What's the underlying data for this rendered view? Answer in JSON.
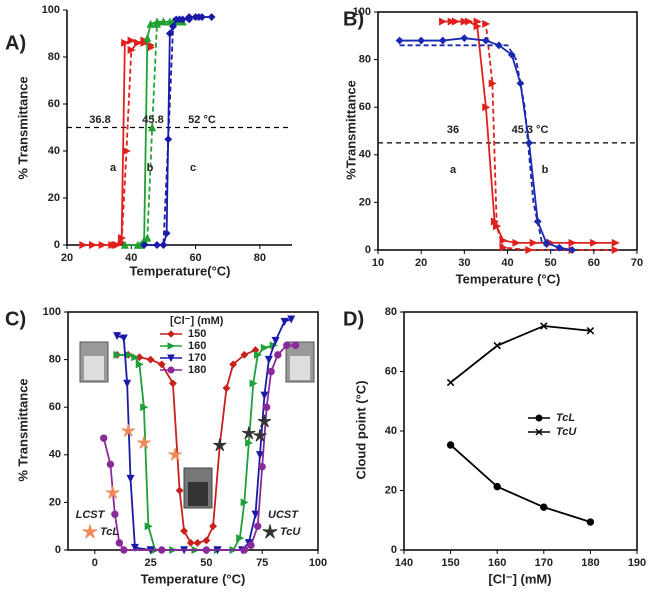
{
  "chart_data": [
    {
      "type": "line",
      "panel_label": "A)",
      "xlabel": "Temperature(°C)",
      "ylabel": "% Transmittance",
      "frame": false,
      "xlim": [
        20,
        90
      ],
      "xticks": [
        20,
        40,
        60,
        80
      ],
      "ylim": [
        0,
        100
      ],
      "yticks": [
        0,
        20,
        40,
        60,
        80,
        100
      ],
      "ref_line": 50,
      "annotations": [
        {
          "text": "36.8",
          "color": "#e0201c"
        },
        {
          "text": "45.8",
          "color": "#22a032"
        },
        {
          "text": "52 °C",
          "color": "#1a1aa8"
        },
        {
          "text": "a",
          "color": "#000"
        },
        {
          "text": "b",
          "color": "#000"
        },
        {
          "text": "c",
          "color": "#000"
        }
      ],
      "series": [
        {
          "color": "#e0201c",
          "marker": "triangle-right",
          "dash": false,
          "x": [
            25,
            28,
            31,
            34,
            35.5,
            37,
            38,
            40,
            42,
            44,
            46
          ],
          "values": [
            0,
            0,
            0,
            0,
            0,
            3,
            86,
            87,
            86,
            87,
            85
          ]
        },
        {
          "color": "#e0201c",
          "marker": "triangle-right",
          "dash": true,
          "x": [
            35,
            37,
            38.5,
            40,
            42,
            44,
            46
          ],
          "values": [
            0,
            1,
            40,
            83,
            86,
            86,
            84
          ]
        },
        {
          "color": "#22a032",
          "marker": "triangle",
          "dash": false,
          "x": [
            38,
            42,
            44,
            45,
            46,
            48,
            50,
            52,
            54,
            56
          ],
          "values": [
            0,
            0,
            2,
            88,
            94,
            95,
            95,
            95,
            95,
            95
          ]
        },
        {
          "color": "#22a032",
          "marker": "triangle",
          "dash": true,
          "x": [
            43,
            45,
            46.5,
            48,
            50,
            53,
            56
          ],
          "values": [
            0,
            3,
            50,
            94,
            95,
            95,
            95
          ]
        },
        {
          "color": "#1a1aa8",
          "marker": "diamond",
          "dash": false,
          "x": [
            44,
            48,
            50,
            51,
            52,
            54,
            56,
            58,
            60,
            62,
            65
          ],
          "values": [
            0,
            0,
            0,
            5,
            90,
            96,
            96,
            97,
            97,
            97,
            97
          ]
        },
        {
          "color": "#1a1aa8",
          "marker": "diamond",
          "dash": true,
          "x": [
            48,
            50,
            51.5,
            53,
            55,
            58,
            61
          ],
          "values": [
            0,
            0,
            45,
            93,
            96,
            96,
            97
          ]
        }
      ]
    },
    {
      "type": "line",
      "panel_label": "B)",
      "xlabel": "Temperature (°C)",
      "ylabel": "%Transmittance",
      "frame": true,
      "xlim": [
        10,
        70
      ],
      "xticks": [
        10,
        20,
        30,
        40,
        50,
        60,
        70
      ],
      "ylim": [
        0,
        100
      ],
      "yticks": [
        0,
        20,
        40,
        60,
        80,
        100
      ],
      "ref_line": 45,
      "annotations": [
        {
          "text": "36",
          "color": "#e0201c"
        },
        {
          "text": "45.3 °C",
          "color": "#1a1aa8"
        },
        {
          "text": "a",
          "color": "#000"
        },
        {
          "text": "b",
          "color": "#000"
        }
      ],
      "series": [
        {
          "color": "#e0201c",
          "marker": "triangle-right",
          "dash": false,
          "x": [
            25,
            28,
            31,
            33,
            35,
            37,
            39,
            42,
            46,
            50,
            55,
            60,
            65
          ],
          "values": [
            96,
            96,
            96,
            94,
            60,
            12,
            4,
            3,
            3,
            3,
            3,
            3,
            3
          ]
        },
        {
          "color": "#e0201c",
          "marker": "triangle-right",
          "dash": true,
          "x": [
            27,
            30,
            33,
            35,
            36.5,
            37.5,
            39,
            45,
            55,
            65
          ],
          "values": [
            96,
            96,
            96,
            95,
            70,
            10,
            1,
            0,
            0,
            0
          ]
        },
        {
          "color": "#1a2ab0",
          "marker": "diamond",
          "dash": false,
          "x": [
            15,
            20,
            25,
            30,
            35,
            38,
            41,
            43,
            45,
            47,
            49,
            52,
            55
          ],
          "values": [
            88,
            88,
            88,
            89,
            88,
            86,
            82,
            70,
            45,
            12,
            3,
            1,
            0
          ]
        },
        {
          "color": "#1a2ab0",
          "marker": "none",
          "dash": true,
          "x": [
            15,
            25,
            35,
            40,
            42,
            44,
            46,
            48,
            50,
            55
          ],
          "values": [
            86,
            86,
            86,
            86,
            80,
            60,
            20,
            3,
            0,
            0
          ]
        }
      ]
    },
    {
      "type": "line",
      "panel_label": "C)",
      "xlabel": "Temperature (°C)",
      "ylabel": "% Transmittance",
      "frame": true,
      "xlim": [
        -12,
        100
      ],
      "xticks": [
        0,
        25,
        50,
        75,
        100
      ],
      "ylim": [
        0,
        100
      ],
      "yticks": [
        0,
        20,
        40,
        60,
        80,
        100
      ],
      "legend_title": "[Cl⁻] (mM)",
      "annotations": [
        {
          "text": "LCST",
          "color": "#111"
        },
        {
          "text": "UCST",
          "color": "#111"
        }
      ],
      "series": [
        {
          "name": "150",
          "color": "#c8201c",
          "marker": "diamond",
          "x": [
            10,
            15,
            20,
            25,
            30,
            35,
            38,
            40,
            43,
            46,
            50,
            53,
            56,
            59,
            62,
            67,
            72
          ],
          "values": [
            82,
            82,
            81,
            80,
            78,
            70,
            25,
            8,
            3,
            3,
            4,
            10,
            44,
            68,
            78,
            82,
            84
          ]
        },
        {
          "name": "160",
          "color": "#1fa03a",
          "marker": "triangle-right",
          "x": [
            10,
            15,
            18,
            20,
            22,
            24,
            27,
            35,
            45,
            55,
            62,
            65,
            67,
            69,
            71,
            73,
            76,
            80
          ],
          "values": [
            82,
            82,
            81,
            78,
            60,
            10,
            0,
            0,
            0,
            0,
            0,
            5,
            20,
            45,
            70,
            82,
            85,
            86
          ]
        },
        {
          "name": "170",
          "color": "#1a1aa8",
          "marker": "triangle-down",
          "x": [
            10,
            13,
            14.5,
            16,
            18,
            25,
            40,
            55,
            66,
            69,
            72,
            74,
            76,
            78,
            81,
            85,
            88
          ],
          "values": [
            90,
            89,
            70,
            30,
            1,
            0,
            0,
            0,
            0,
            3,
            15,
            40,
            65,
            80,
            88,
            96,
            97
          ]
        },
        {
          "name": "180",
          "color": "#8a2a9a",
          "marker": "circle",
          "x": [
            4,
            7,
            9,
            11,
            13,
            30,
            50,
            67,
            70,
            73,
            75,
            77,
            79,
            82,
            86,
            90
          ],
          "values": [
            47,
            36,
            15,
            3,
            0,
            0,
            0,
            0,
            2,
            10,
            35,
            60,
            75,
            82,
            86,
            86
          ]
        },
        {
          "name": "TcL",
          "color": "#f08a5a",
          "marker": "star",
          "line": false,
          "x": [
            8,
            15,
            22,
            36
          ],
          "values": [
            24,
            50,
            45,
            40
          ]
        },
        {
          "name": "TcU",
          "color": "#333333",
          "marker": "star",
          "line": false,
          "x": [
            56,
            69,
            74,
            76
          ],
          "values": [
            44,
            49,
            48,
            54
          ]
        }
      ]
    },
    {
      "type": "line",
      "panel_label": "D)",
      "xlabel": "[Cl⁻] (mM)",
      "ylabel": "Cloud point (°C)",
      "frame": true,
      "xlim": [
        140,
        190
      ],
      "xticks": [
        140,
        150,
        160,
        170,
        180,
        190
      ],
      "ylim": [
        0,
        80
      ],
      "yticks": [
        0,
        20,
        40,
        60,
        80
      ],
      "series": [
        {
          "name": "TcL",
          "color": "#000000",
          "marker": "circle",
          "x": [
            150,
            160,
            170,
            180
          ],
          "values": [
            35.3,
            21.3,
            14.4,
            9.4
          ]
        },
        {
          "name": "TcU",
          "color": "#000000",
          "marker": "x",
          "x": [
            150,
            160,
            170,
            180
          ],
          "values": [
            56.3,
            68.7,
            75.3,
            73.7
          ]
        }
      ]
    }
  ]
}
